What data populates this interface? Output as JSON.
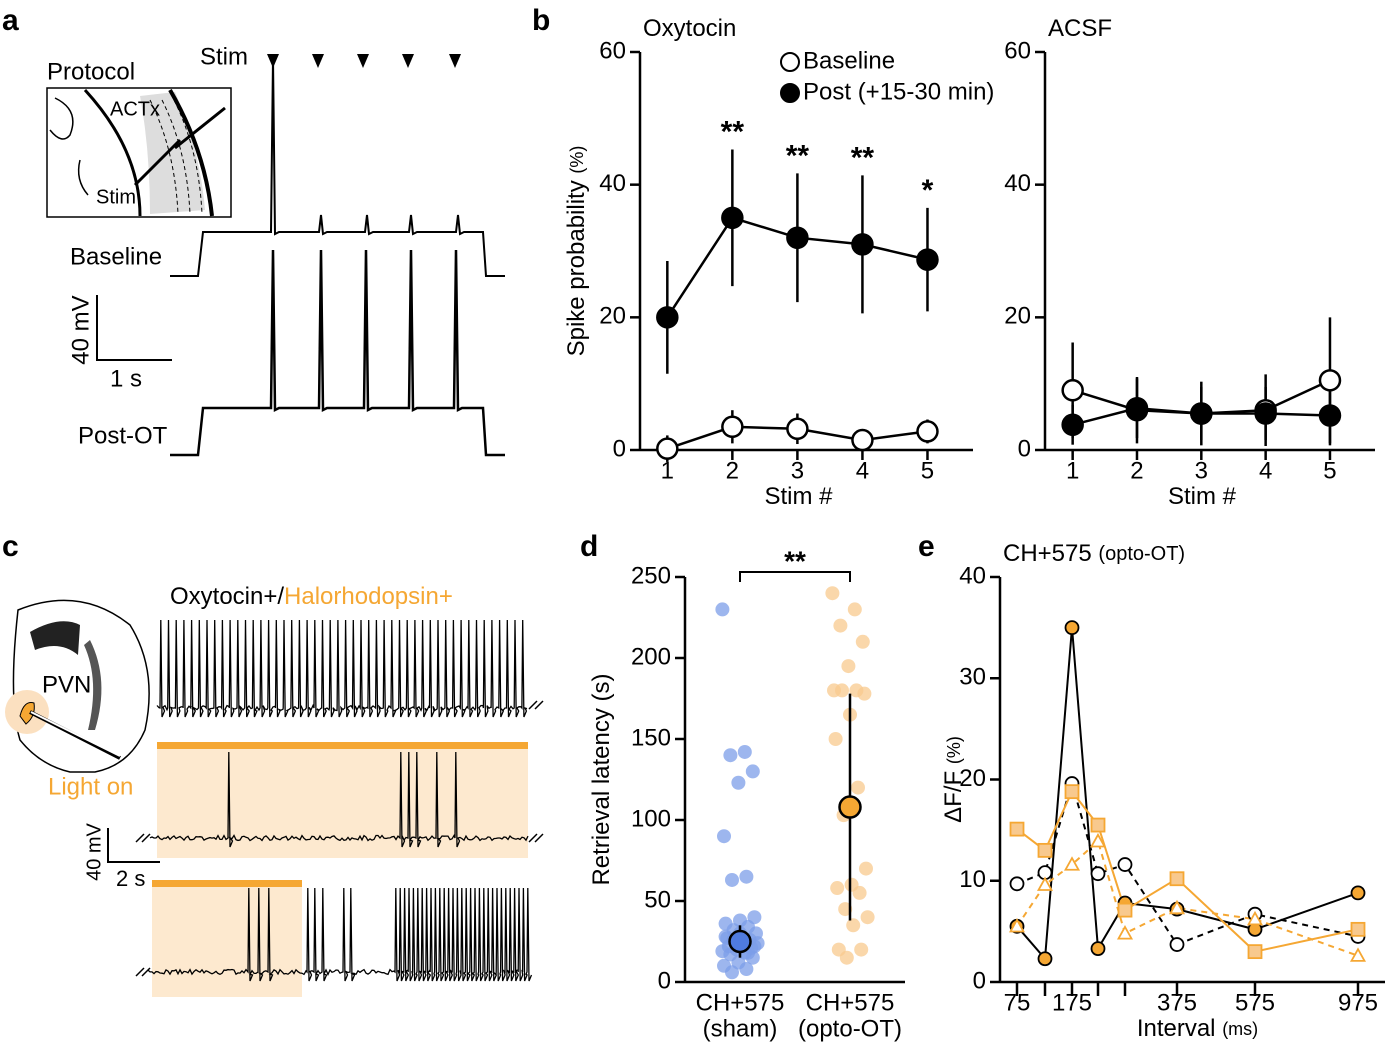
{
  "panel_labels": [
    "a",
    "b",
    "c",
    "d",
    "e"
  ],
  "panel_a": {
    "stim": "Stim",
    "protocol": "Protocol",
    "region": "ACTx",
    "electrode": "Stim",
    "baseline": "Baseline",
    "post": "Post-OT",
    "scale_v": "40 mV",
    "scale_t": "1 s"
  },
  "panel_c": {
    "region": "PVN",
    "label_a": "Oxytocin+/",
    "label_b": "Halorhodopsin+",
    "light": "Light on",
    "scale_v": "40 mV",
    "scale_t": "2 s"
  },
  "chart_data": [
    {
      "type": "line",
      "title": "Oxytocin",
      "ylabel": "Spike probability",
      "ylabel_unit": "(%)",
      "xlabel": "Stim #",
      "x": [
        1,
        2,
        3,
        4,
        5
      ],
      "xlim": [
        0.58,
        5.7
      ],
      "xticks": [
        1,
        2,
        3,
        4,
        5
      ],
      "ylim": [
        0,
        60
      ],
      "yticks": [
        0,
        20,
        40,
        60
      ],
      "legend": "top right",
      "series": [
        {
          "name": "Baseline",
          "color": "#ffffff",
          "values": [
            0.2,
            3.5,
            3.2,
            1.5,
            2.8
          ],
          "errors": [
            2,
            2.5,
            2.3,
            1.5,
            1.8
          ]
        },
        {
          "name": "Post (+15-30 min)",
          "color": "#000000",
          "values": [
            20,
            35,
            32,
            31,
            28.7
          ],
          "errors": [
            8.5,
            10.3,
            9.7,
            10.4,
            7.8
          ]
        }
      ],
      "annotations": [
        {
          "x": 2,
          "text": "**"
        },
        {
          "x": 3,
          "text": "**"
        },
        {
          "x": 4,
          "text": "**"
        },
        {
          "x": 5,
          "text": "*"
        }
      ]
    },
    {
      "type": "line",
      "title": "ACSF",
      "xlabel": "Stim #",
      "x": [
        1,
        2,
        3,
        4,
        5
      ],
      "xlim": [
        0.57,
        5.7
      ],
      "xticks": [
        1,
        2,
        3,
        4,
        5
      ],
      "ylim": [
        0,
        60
      ],
      "yticks": [
        0,
        20,
        40,
        60
      ],
      "series": [
        {
          "name": "Baseline",
          "color": "#ffffff",
          "values": [
            9,
            6,
            5.5,
            6,
            10.5
          ],
          "errors": [
            7.2,
            5,
            4.8,
            5.4,
            9.5
          ]
        },
        {
          "name": "Post (+15-30 min)",
          "color": "#000000",
          "values": [
            3.8,
            6.3,
            5.5,
            5.5,
            5.2
          ],
          "errors": [
            3,
            4.5,
            4,
            4,
            4.5
          ]
        }
      ]
    },
    {
      "type": "strip",
      "ylabel": "Retrieval latency (s)",
      "categories": [
        "CH+575",
        "CH+575"
      ],
      "category_notes": [
        "(sham)",
        "(opto-OT)"
      ],
      "ylim": [
        0,
        250
      ],
      "yticks": [
        0,
        50,
        100,
        150,
        200,
        250
      ],
      "annotation": "**",
      "series": [
        {
          "color": "#7c9ee8",
          "values": [
            230,
            142,
            140,
            130,
            123,
            90,
            65,
            63,
            40,
            38,
            36,
            34,
            32,
            30,
            28,
            27,
            26,
            25,
            24,
            23,
            22,
            21,
            20,
            19,
            18,
            17,
            15,
            12,
            10,
            8,
            6,
            22,
            30,
            28,
            18,
            26
          ],
          "mean": 25,
          "error": 10
        },
        {
          "color": "#f8c98e",
          "values": [
            240,
            230,
            220,
            210,
            195,
            180,
            180,
            180,
            178,
            165,
            150,
            120,
            103,
            70,
            60,
            58,
            55,
            45,
            40,
            35,
            20,
            20,
            15
          ],
          "mean": 108,
          "error": 70
        }
      ]
    },
    {
      "type": "line",
      "title": "CH+575",
      "title_note": "(opto-OT)",
      "ylabel": "ΔF/F",
      "ylabel_unit": "(%)",
      "xlabel": "Interval",
      "xlabel_unit": "(ms)",
      "categories": [
        "75",
        null,
        "175",
        null,
        null,
        "375",
        "575",
        "975"
      ],
      "ylim": [
        0,
        40
      ],
      "yticks": [
        0,
        10,
        20,
        30,
        40
      ],
      "series": [
        {
          "color": "#000000",
          "fill": "#f5a733",
          "marker": "circle",
          "dash": false,
          "values": [
            5.5,
            2.3,
            35,
            3.3,
            7.8,
            7.2,
            5.2,
            8.8
          ]
        },
        {
          "color": "#000000",
          "fill": "#ffffff",
          "marker": "circle",
          "dash": true,
          "values": [
            9.7,
            10.8,
            19.6,
            10.7,
            11.6,
            3.7,
            6.7,
            4.5
          ]
        },
        {
          "color": "#f5a733",
          "fill": "#f8c98e",
          "marker": "square",
          "dash": false,
          "values": [
            15.1,
            13,
            18.8,
            15.5,
            7.1,
            10.2,
            3,
            5.2
          ]
        },
        {
          "color": "#f5a733",
          "fill": "#ffffff",
          "marker": "triangle",
          "dash": true,
          "values": [
            5.5,
            9.6,
            11.6,
            13.9,
            4.8,
            7.3,
            6.2,
            2.6
          ]
        }
      ]
    }
  ]
}
